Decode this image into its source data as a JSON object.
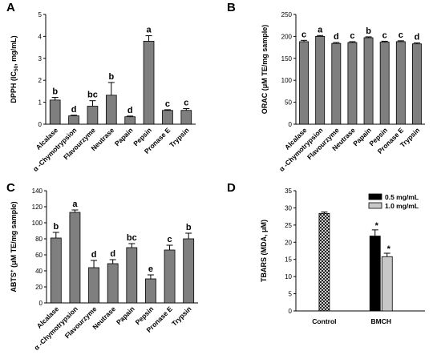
{
  "colors": {
    "bar": "#7f7f7f",
    "series_black": "#000000",
    "series_light": "#c8c8c8",
    "control_hatch": "#000000"
  },
  "chart_data": [
    {
      "panel_label": "A",
      "type": "bar",
      "ylabel": "DPPH (IC50, mg/mL)",
      "ylim": [
        0,
        5
      ],
      "yticks": [
        "0",
        "1",
        "2",
        "3",
        "4",
        "5"
      ],
      "categories": [
        "Alcalase",
        "α -Chymotrypsion",
        "Flavourzyme",
        "Neutrase",
        "Papain",
        "Pepsin",
        "Pronase E",
        "Trypsin"
      ],
      "values": [
        1.1,
        0.38,
        0.82,
        1.32,
        0.34,
        3.78,
        0.63,
        0.63
      ],
      "errors": [
        0.12,
        0.03,
        0.25,
        0.58,
        0.03,
        0.25,
        0.03,
        0.08
      ],
      "labels": [
        "b",
        "d",
        "bc",
        "b",
        "d",
        "a",
        "c",
        "c"
      ]
    },
    {
      "panel_label": "B",
      "type": "bar",
      "ylabel": "ORAC (μM TE/mg sample)",
      "ylim": [
        0,
        250
      ],
      "yticks": [
        "0",
        "50",
        "100",
        "150",
        "200",
        "250"
      ],
      "categories": [
        "Alcalase",
        "α -Chymotrypsion",
        "Flavourzyme",
        "Neutrase",
        "Papain",
        "Pepsin",
        "Pronase E",
        "Trypsin"
      ],
      "values": [
        188,
        200,
        184,
        186,
        197,
        187,
        188,
        183
      ],
      "errors": [
        3,
        2,
        2,
        2,
        2,
        2,
        2,
        2
      ],
      "labels": [
        "c",
        "a",
        "d",
        "c",
        "b",
        "c",
        "c",
        "d"
      ]
    },
    {
      "panel_label": "C",
      "type": "bar",
      "ylabel": "ABTS+ (μM TE/mg sample)",
      "ylim": [
        0,
        140
      ],
      "yticks": [
        "0",
        "20",
        "40",
        "60",
        "80",
        "100",
        "120",
        "140"
      ],
      "categories": [
        "Alcalase",
        "α -Chymotrypsion",
        "Flavourzyme",
        "Neutrase",
        "Papain",
        "Pepsin",
        "Pronase E",
        "Trypsin"
      ],
      "values": [
        81,
        113,
        44,
        49,
        69,
        30,
        66,
        80
      ],
      "errors": [
        7,
        3,
        9,
        5,
        5,
        5,
        6,
        7
      ],
      "labels": [
        "b",
        "a",
        "d",
        "d",
        "bc",
        "e",
        "c",
        "b"
      ]
    },
    {
      "panel_label": "D",
      "type": "bar",
      "ylabel": "TBARS (MDA, μM)",
      "ylim": [
        0,
        35
      ],
      "yticks": [
        "0",
        "5",
        "10",
        "15",
        "20",
        "25",
        "30",
        "35"
      ],
      "categories": [
        "Control",
        "BMCH"
      ],
      "control": {
        "value": 28.4,
        "error": 0.4
      },
      "series": [
        {
          "name": "0.5 mg/mL",
          "values": [
            null,
            21.8
          ],
          "errors": [
            null,
            1.8
          ]
        },
        {
          "name": "1.0 mg/mL",
          "values": [
            null,
            15.8
          ],
          "errors": [
            null,
            1.0
          ]
        }
      ],
      "labels": [
        "*",
        "*"
      ],
      "legend_position": "top-right"
    }
  ]
}
